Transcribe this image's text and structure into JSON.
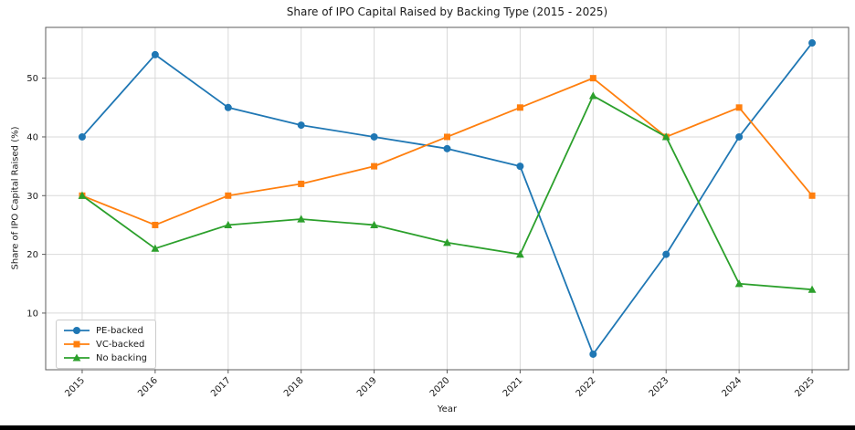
{
  "chart_data": {
    "type": "line",
    "title": "Share of IPO Capital Raised by Backing Type (2015 - 2025)",
    "xlabel": "Year",
    "ylabel": "Share of IPO Capital Raised (%)",
    "categories": [
      "2015",
      "2016",
      "2017",
      "2018",
      "2019",
      "2020",
      "2021",
      "2022",
      "2023",
      "2024",
      "2025"
    ],
    "series": [
      {
        "name": "PE-backed",
        "color": "#1f77b4",
        "marker": "circle",
        "values": [
          40,
          54,
          45,
          42,
          40,
          38,
          35,
          3,
          20,
          40,
          56
        ]
      },
      {
        "name": "VC-backed",
        "color": "#ff7f0e",
        "marker": "square",
        "values": [
          30,
          25,
          30,
          32,
          35,
          40,
          45,
          50,
          40,
          45,
          30
        ]
      },
      {
        "name": "No backing",
        "color": "#2ca02c",
        "marker": "triangle",
        "values": [
          30,
          21,
          25,
          26,
          25,
          22,
          20,
          47,
          40,
          15,
          14
        ]
      }
    ],
    "yticks": [
      10,
      20,
      30,
      40,
      50
    ],
    "ylim": [
      0.35,
      58.65
    ],
    "xlim": [
      -0.5,
      10.5
    ],
    "grid": true,
    "legend_position": "lower left",
    "colors": {
      "grid": "#d9d9d9",
      "spine": "#5c5c5c",
      "tick": "#5c5c5c",
      "text": "#1a1a1a"
    }
  }
}
